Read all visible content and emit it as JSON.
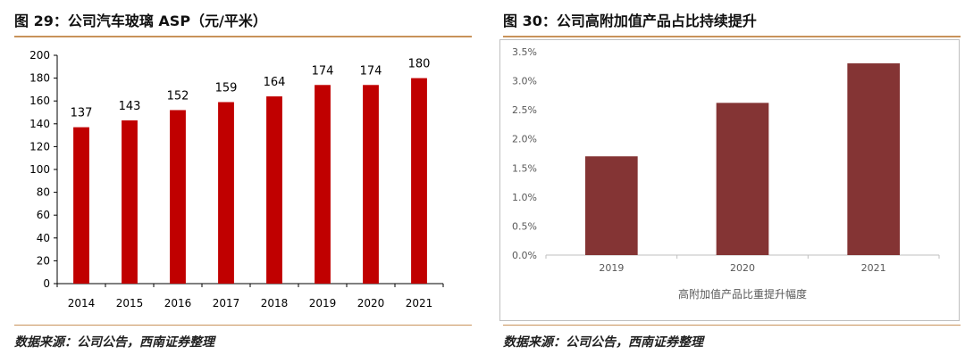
{
  "left_panel": {
    "title": "图 29：公司汽车玻璃 ASP（元/平米）",
    "source": "数据来源：公司公告，西南证券整理"
  },
  "right_panel": {
    "title": "图 30：公司高附加值产品占比持续提升",
    "source": "数据来源：公司公告，西南证券整理"
  },
  "colors": {
    "left_bar": "#c00000",
    "right_bar": "#843434",
    "rule": "#c8925a"
  },
  "chart_data": [
    {
      "type": "bar",
      "title": "公司汽车玻璃 ASP（元/平米）",
      "categories": [
        "2014",
        "2015",
        "2016",
        "2017",
        "2018",
        "2019",
        "2020",
        "2021"
      ],
      "values": [
        137,
        143,
        152,
        159,
        164,
        174,
        174,
        180
      ],
      "data_labels": [
        "137",
        "143",
        "152",
        "159",
        "164",
        "174",
        "174",
        "180"
      ],
      "ylim": [
        0,
        200
      ],
      "yticks": [
        0,
        20,
        40,
        60,
        80,
        100,
        120,
        140,
        160,
        180,
        200
      ],
      "ytick_labels": [
        "0",
        "20",
        "40",
        "60",
        "80",
        "100",
        "120",
        "140",
        "160",
        "180",
        "200"
      ],
      "xlabel": "",
      "ylabel": "",
      "grid": false,
      "legend": "none"
    },
    {
      "type": "bar",
      "title": "公司高附加值产品占比持续提升",
      "categories": [
        "2019",
        "2020",
        "2021"
      ],
      "values": [
        1.7,
        2.62,
        3.3
      ],
      "ylim": [
        0,
        3.5
      ],
      "yticks": [
        0,
        0.5,
        1.0,
        1.5,
        2.0,
        2.5,
        3.0,
        3.5
      ],
      "ytick_labels": [
        "0.0%",
        "0.5%",
        "1.0%",
        "1.5%",
        "2.0%",
        "2.5%",
        "3.0%",
        "3.5%"
      ],
      "xlabel": "高附加值产品比重提升幅度",
      "ylabel": "",
      "grid": false,
      "legend": "none"
    }
  ]
}
